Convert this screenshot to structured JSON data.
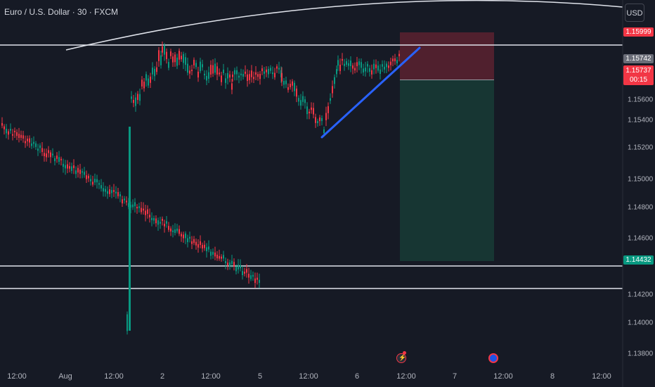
{
  "symbol": {
    "title": "Euro / U.S. Dollar · 30 · FXCM"
  },
  "currency_button": {
    "label": "USD"
  },
  "price_axis": {
    "ticks": [
      "1.15600",
      "1.15400",
      "1.15200",
      "1.15000",
      "1.14800",
      "1.14600",
      "1.14200",
      "1.14000",
      "1.13800"
    ]
  },
  "time_axis": {
    "ticks": [
      "12:00",
      "Aug",
      "12:00",
      "2",
      "12:00",
      "5",
      "12:00",
      "6",
      "12:00",
      "7",
      "12:00",
      "8",
      "12:00"
    ]
  },
  "price_tags": {
    "stop_loss": "1.15999",
    "last_price": "1.15742",
    "current_price": "1.15737",
    "countdown": "00:15",
    "take_profit": "1.14432"
  },
  "colors": {
    "background": "#161a25",
    "candle_up": "#089981",
    "candle_down": "#f23645",
    "trendline": "#2962ff",
    "stop_zone": "#5b2230",
    "profit_zone": "#173633"
  },
  "chart_data": {
    "type": "candlestick",
    "price_range": [
      1.1375,
      1.1625
    ],
    "horizontal_levels": [
      1.15999,
      1.14432,
      1.14262
    ],
    "trendline": [
      [
        1.1531,
        1.15942
      ]
    ],
    "position": {
      "side": "short",
      "entry": 1.15742,
      "stop": 1.15999,
      "target": 1.14432
    }
  },
  "events": {
    "earnings_icon": "lightning-icon",
    "economic_icon": "flag-icon"
  }
}
